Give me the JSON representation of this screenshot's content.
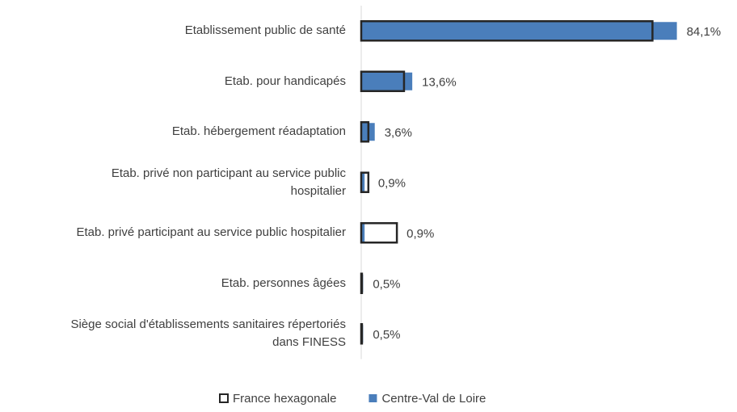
{
  "chart_data": {
    "type": "bar",
    "orientation": "horizontal",
    "categories": [
      "Etablissement public de santé",
      "Etab. pour handicapés",
      "Etab. hébergement réadaptation",
      "Etab. privé non participant au service public hospitalier",
      "Etab. privé participant au service public hospitalier",
      "Etab. personnes âgées",
      "Siège social d'établissements sanitaires répertoriés dans FINESS"
    ],
    "series": [
      {
        "name": "France hexagonale",
        "color": "#262626",
        "style": "outline",
        "values": [
          77.6,
          11.4,
          1.9,
          1.9,
          9.5,
          0.2,
          0.2
        ]
      },
      {
        "name": "Centre-Val de Loire",
        "color": "#4a7ebb",
        "style": "filled",
        "values": [
          84.1,
          13.6,
          3.6,
          0.9,
          0.9,
          0.5,
          0.5
        ],
        "value_labels": [
          "84,1%",
          "13,6%",
          "3,6%",
          "0,9%",
          "0,9%",
          "0,5%",
          "0,5%"
        ]
      }
    ],
    "xlim": [
      0,
      90
    ],
    "legend": "bottom"
  }
}
